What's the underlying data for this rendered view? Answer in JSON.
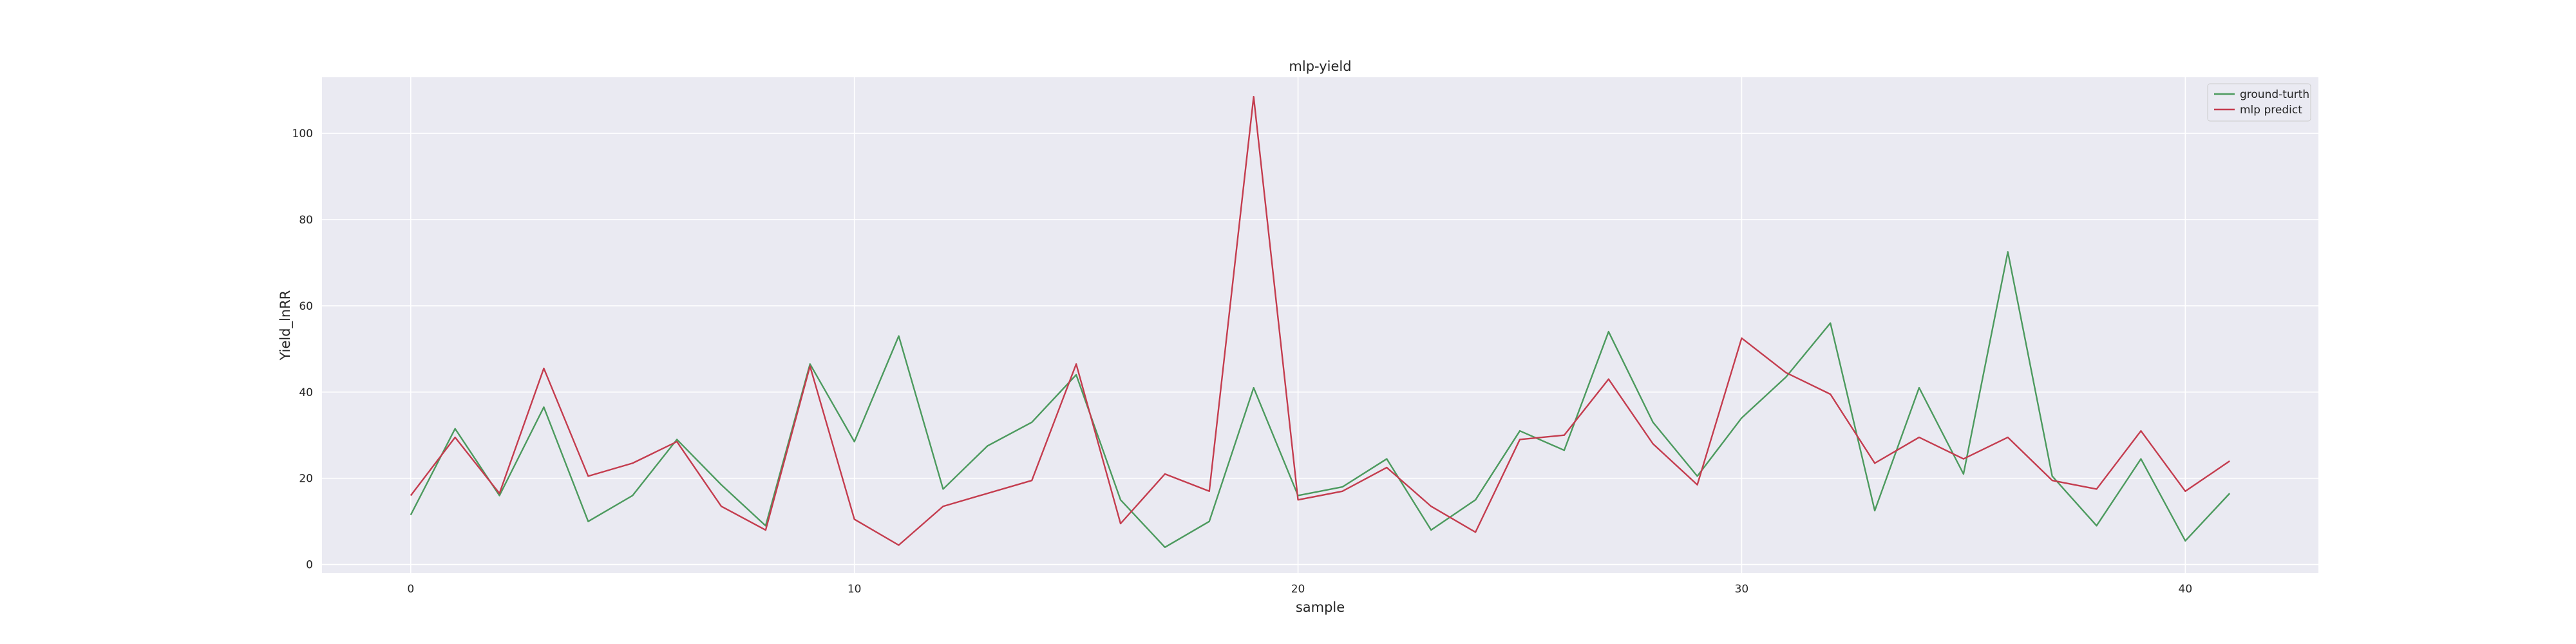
{
  "chart_data": {
    "type": "line",
    "title": "mlp-yield",
    "xlabel": "sample",
    "ylabel": "Yield_lnRR",
    "xlim": [
      -2,
      43
    ],
    "ylim": [
      -2,
      113
    ],
    "xticks": [
      0,
      10,
      20,
      30,
      40
    ],
    "yticks": [
      0,
      20,
      40,
      60,
      80,
      100
    ],
    "grid": true,
    "legend_position": "top-right",
    "x": [
      0,
      1,
      2,
      3,
      4,
      5,
      6,
      7,
      8,
      9,
      10,
      11,
      12,
      13,
      14,
      15,
      16,
      17,
      18,
      19,
      20,
      21,
      22,
      23,
      24,
      25,
      26,
      27,
      28,
      29,
      30,
      31,
      32,
      33,
      34,
      35,
      36,
      37,
      38,
      39,
      40,
      41
    ],
    "series": [
      {
        "name": "ground-turth",
        "color": "#4c9a5e",
        "values": [
          11.5,
          31.5,
          16.0,
          36.5,
          10.0,
          16.0,
          29.0,
          18.5,
          9.0,
          46.5,
          28.5,
          53.0,
          17.5,
          27.5,
          33.0,
          44.0,
          15.0,
          4.0,
          10.0,
          41.0,
          16.0,
          18.0,
          24.5,
          8.0,
          15.0,
          31.0,
          26.5,
          54.0,
          33.0,
          20.5,
          34.0,
          43.5,
          56.0,
          12.5,
          41.0,
          21.0,
          72.5,
          20.5,
          9.0,
          24.5,
          5.5,
          16.5
        ]
      },
      {
        "name": "mlp predict",
        "color": "#c43c4e",
        "values": [
          16.0,
          29.5,
          16.5,
          45.5,
          20.5,
          23.5,
          28.5,
          13.5,
          8.0,
          46.0,
          10.5,
          4.5,
          13.5,
          16.5,
          19.5,
          46.5,
          9.5,
          21.0,
          17.0,
          108.5,
          15.0,
          17.0,
          22.5,
          13.5,
          7.5,
          29.0,
          30.0,
          43.0,
          28.0,
          18.5,
          52.5,
          44.5,
          39.5,
          23.5,
          29.5,
          24.5,
          29.5,
          19.5,
          17.5,
          31.0,
          17.0,
          24.0
        ]
      }
    ]
  }
}
